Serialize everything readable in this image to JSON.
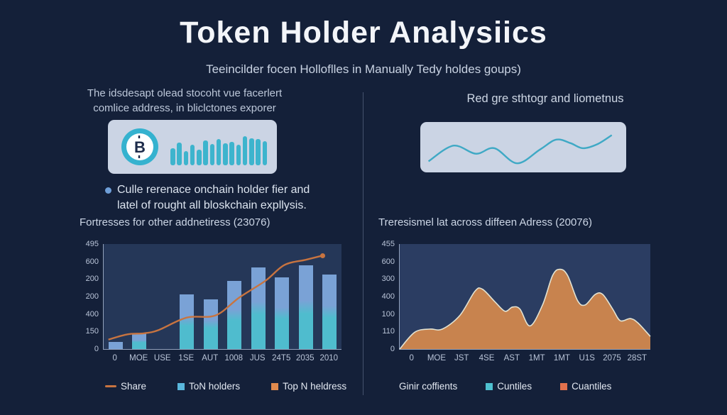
{
  "title": "Token Holder Analysiics",
  "subtitle": "Teeincilder focen Holloflles in Manually Tedy holdes goups)",
  "colors": {
    "background": "#142039",
    "card_bg": "#cbd4e4",
    "accent_teal": "#3db4cd",
    "bar_top_blue": "#7aa2d6",
    "bar_bottom_cyan": "#4fbcce",
    "line_orange": "#c87440",
    "area_fill": "#c8834e",
    "area_stroke": "#e3e3d2",
    "legend_blue": "#59b7dc",
    "legend_teal": "#4ec0cf",
    "legend_orange": "#e08a4d"
  },
  "left": {
    "intro": [
      "The idsdesapt olead stocoht vue facerlert",
      "comlice address, in bliclctones exporer"
    ],
    "card": {
      "icon": "bitcoin-icon",
      "waveform_bars": [
        46,
        62,
        38,
        56,
        42,
        68,
        58,
        72,
        60,
        63,
        55,
        78,
        74,
        71,
        66
      ]
    },
    "bullet": [
      "Culle rerenace onchain holder fier and",
      "latel of rought all bloskchain expllysis."
    ],
    "chart_title": "Fortresses for other addnetiress (23076)",
    "legend": [
      {
        "label": "Share",
        "marker": "line",
        "color": "#c87440"
      },
      {
        "label": "ToN holders",
        "marker": "square",
        "color": "#59b7dc"
      },
      {
        "label": "Top N heldress",
        "marker": "square",
        "color": "#e08a4d"
      }
    ]
  },
  "right": {
    "header": "Red gre sthtogr and liometnus",
    "card": {
      "wave_points": [
        [
          4,
          78
        ],
        [
          16,
          47
        ],
        [
          27,
          63
        ],
        [
          36,
          52
        ],
        [
          47,
          82
        ],
        [
          58,
          55
        ],
        [
          66,
          35
        ],
        [
          73,
          42
        ],
        [
          79,
          52
        ],
        [
          86,
          44
        ],
        [
          93,
          26
        ]
      ]
    },
    "chart_title": "Treresismel lat across diffeen Adress (20076)",
    "legend": [
      {
        "label": "Ginir coffients",
        "marker": "none",
        "color": ""
      },
      {
        "label": "Cuntiles",
        "marker": "square",
        "color": "#4ec0cf"
      },
      {
        "label": "Cuantiles",
        "marker": "square",
        "color": "#e2714d"
      }
    ]
  },
  "chart_data": [
    {
      "type": "bar",
      "title": "Fortresses for other addnetiress (23076)",
      "categories": [
        "0",
        "MOE",
        "USE",
        "1SE",
        "AUT",
        "1008",
        "JUS",
        "24T5",
        "2035",
        "2010"
      ],
      "y_tick_labels_top_to_bottom": [
        "495",
        "600",
        "200",
        "200",
        "400",
        "150",
        "0"
      ],
      "bar_slots": [
        0,
        1,
        3,
        4,
        5,
        6,
        7,
        8,
        9
      ],
      "bar_values_pct": [
        7,
        15,
        52,
        47,
        65,
        78,
        68,
        80,
        71
      ],
      "line_series": {
        "name": "Share",
        "points_pct": [
          [
            2,
            9
          ],
          [
            10,
            14
          ],
          [
            17,
            15
          ],
          [
            23,
            18
          ],
          [
            35,
            30
          ],
          [
            47,
            32
          ],
          [
            57,
            49
          ],
          [
            68,
            65
          ],
          [
            76,
            80
          ],
          [
            85,
            85
          ],
          [
            92,
            89
          ]
        ]
      },
      "legend_position": "bottom",
      "grid": false
    },
    {
      "type": "area",
      "title": "Treresismel lat across diffeen Adress (20076)",
      "categories": [
        "0",
        "MOE",
        "JST",
        "4SE",
        "AST",
        "1MT",
        "1MT",
        "U1S",
        "2075",
        "28ST"
      ],
      "y_tick_labels_top_to_bottom": [
        "455",
        "600",
        "300",
        "400",
        "100",
        "110",
        "0"
      ],
      "area_points_pct": [
        [
          0,
          0
        ],
        [
          6,
          16
        ],
        [
          12,
          19
        ],
        [
          17,
          19
        ],
        [
          24,
          32
        ],
        [
          30,
          55
        ],
        [
          33,
          57
        ],
        [
          38,
          45
        ],
        [
          42,
          36
        ],
        [
          45,
          40
        ],
        [
          48,
          38
        ],
        [
          52,
          22
        ],
        [
          57,
          42
        ],
        [
          61,
          70
        ],
        [
          64,
          76
        ],
        [
          67,
          70
        ],
        [
          71,
          46
        ],
        [
          74,
          42
        ],
        [
          78,
          52
        ],
        [
          81,
          52
        ],
        [
          85,
          38
        ],
        [
          88,
          27
        ],
        [
          92,
          29
        ],
        [
          95,
          25
        ],
        [
          100,
          12
        ]
      ],
      "legend_position": "bottom",
      "grid": false
    }
  ]
}
